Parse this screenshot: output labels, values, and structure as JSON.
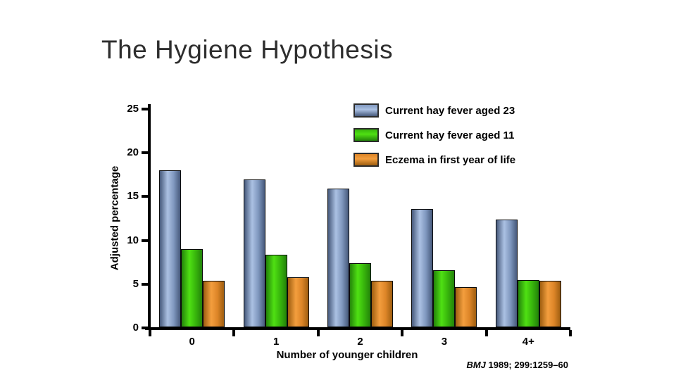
{
  "title": "The Hygiene Hypothesis",
  "citation": {
    "journal": "BMJ",
    "rest": " 1989; 299:1259–60"
  },
  "chart_data": {
    "type": "bar",
    "title": "The Hygiene Hypothesis",
    "categories": [
      "0",
      "1",
      "2",
      "3",
      "4+"
    ],
    "series": [
      {
        "name": "Current hay fever aged 23",
        "values": [
          17.9,
          16.9,
          15.8,
          13.5,
          12.3
        ],
        "color_dark": "#46597b",
        "color_light": "#abc1e3",
        "color_mid": "#8098bf"
      },
      {
        "name": "Current hay fever aged 11",
        "values": [
          8.9,
          8.3,
          7.3,
          6.5,
          5.4
        ],
        "color_dark": "#23830a",
        "color_light": "#4fe013",
        "color_mid": "#38b60c"
      },
      {
        "name": "Eczema in first year of life",
        "values": [
          5.3,
          5.7,
          5.3,
          4.6,
          5.3
        ],
        "color_dark": "#9e5e10",
        "color_light": "#f39e3e",
        "color_mid": "#dd8528"
      }
    ],
    "xlabel": "Number of younger children",
    "ylabel": "Adjusted percentage",
    "ylim": [
      0,
      25
    ],
    "yticks": [
      0,
      5,
      10,
      15,
      20,
      25
    ],
    "grid": false,
    "legend_position": "top-right",
    "background": "#ffffff",
    "axis_color": "#000000"
  }
}
